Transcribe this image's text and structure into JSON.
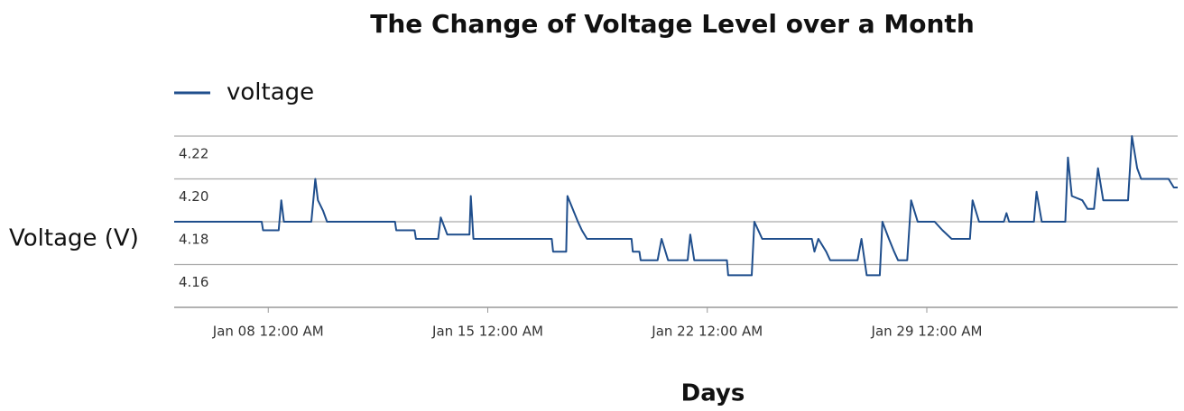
{
  "chart_data": {
    "type": "line",
    "title": "The Change of Voltage Level over a Month",
    "x_label": "Days",
    "y_label": "Voltage (V)",
    "xlim": [
      "Jan 05 12:00 AM",
      "Feb 06 12:00 AM"
    ],
    "xticks": [
      "Jan 08 12:00 AM",
      "Jan 15 12:00 AM",
      "Jan 22 12:00 AM",
      "Jan 29 12:00 AM"
    ],
    "ylim": [
      4.14,
      4.22
    ],
    "yticks": [
      4.16,
      4.18,
      {
        "value": 4.2,
        "label": "4.20"
      },
      4.22
    ],
    "grid": true,
    "legend": "top-left",
    "x": [
      "Jan 05 12:00 AM",
      "Jan 07 07:00 PM",
      "Jan 07 08:00 PM",
      "Jan 08 08:00 AM",
      "Jan 08 10:00 AM",
      "Jan 08 12:00 PM",
      "Jan 09 09:00 AM",
      "Jan 09 12:00 PM",
      "Jan 09 02:00 PM",
      "Jan 09 06:00 PM",
      "Jan 09 09:00 PM",
      "Jan 12 01:00 AM",
      "Jan 12 02:00 AM",
      "Jan 12 04:00 PM",
      "Jan 12 05:00 PM",
      "Jan 13 10:00 AM",
      "Jan 13 12:00 PM",
      "Jan 13 05:00 PM",
      "Jan 14 10:00 AM",
      "Jan 14 11:00 AM",
      "Jan 14 01:00 PM",
      "Jan 17 01:00 AM",
      "Jan 17 02:00 AM",
      "Jan 17 12:00 PM",
      "Jan 17 01:00 PM",
      "Jan 17 09:00 PM",
      "Jan 18 12:00 AM",
      "Jan 18 04:00 AM",
      "Jan 19 02:00 PM",
      "Jan 19 03:00 PM",
      "Jan 19 08:00 PM",
      "Jan 19 09:00 PM",
      "Jan 20 10:00 AM",
      "Jan 20 01:00 PM",
      "Jan 20 06:00 PM",
      "Jan 21 09:00 AM",
      "Jan 21 11:00 AM",
      "Jan 21 02:00 PM",
      "Jan 22 03:00 PM",
      "Jan 22 04:00 PM",
      "Jan 23 10:00 AM",
      "Jan 23 12:00 PM",
      "Jan 23 06:00 PM",
      "Jan 25 08:00 AM",
      "Jan 25 10:00 AM",
      "Jan 25 01:00 PM",
      "Jan 25 07:00 PM",
      "Jan 25 10:00 PM",
      "Jan 26 07:00 PM",
      "Jan 26 10:00 PM",
      "Jan 27 02:00 AM",
      "Jan 27 12:00 PM",
      "Jan 27 02:00 PM",
      "Jan 27 07:00 PM",
      "Jan 27 11:00 PM",
      "Jan 28 02:00 AM",
      "Jan 28 09:00 AM",
      "Jan 28 12:00 PM",
      "Jan 28 05:00 PM",
      "Jan 29 06:00 AM",
      "Jan 29 12:00 PM",
      "Jan 29 07:00 PM",
      "Jan 30 09:00 AM",
      "Jan 30 11:00 AM",
      "Jan 30 04:00 PM",
      "Jan 31 11:00 AM",
      "Jan 31 01:00 PM",
      "Jan 31 03:00 PM",
      "Feb 01 10:00 AM",
      "Feb 01 12:00 PM",
      "Feb 01 04:00 PM",
      "Feb 02 10:00 AM",
      "Feb 02 12:00 PM",
      "Feb 02 03:00 PM",
      "Feb 02 11:00 PM",
      "Feb 03 03:00 AM",
      "Feb 03 08:00 AM",
      "Feb 03 11:00 AM",
      "Feb 03 03:00 PM",
      "Feb 04 10:00 AM",
      "Feb 04 01:00 PM",
      "Feb 04 05:00 PM",
      "Feb 04 08:00 PM",
      "Feb 05 05:00 PM",
      "Feb 05 09:00 PM",
      "Feb 06 12:00 AM"
    ],
    "series": [
      {
        "name": "voltage",
        "color": "#1f4e8c",
        "values": [
          4.18,
          4.18,
          4.176,
          4.176,
          4.19,
          4.18,
          4.18,
          4.2,
          4.19,
          4.185,
          4.18,
          4.18,
          4.176,
          4.176,
          4.172,
          4.172,
          4.182,
          4.174,
          4.174,
          4.192,
          4.172,
          4.172,
          4.166,
          4.166,
          4.192,
          4.18,
          4.176,
          4.172,
          4.172,
          4.166,
          4.166,
          4.162,
          4.162,
          4.172,
          4.162,
          4.162,
          4.174,
          4.162,
          4.162,
          4.155,
          4.155,
          4.18,
          4.172,
          4.172,
          4.166,
          4.172,
          4.166,
          4.162,
          4.162,
          4.172,
          4.155,
          4.155,
          4.18,
          4.172,
          4.166,
          4.162,
          4.162,
          4.19,
          4.18,
          4.18,
          4.176,
          4.172,
          4.172,
          4.19,
          4.18,
          4.18,
          4.184,
          4.18,
          4.18,
          4.194,
          4.18,
          4.18,
          4.21,
          4.192,
          4.19,
          4.186,
          4.186,
          4.205,
          4.19,
          4.19,
          4.22,
          4.205,
          4.2,
          4.2,
          4.196,
          4.196
        ]
      }
    ]
  }
}
